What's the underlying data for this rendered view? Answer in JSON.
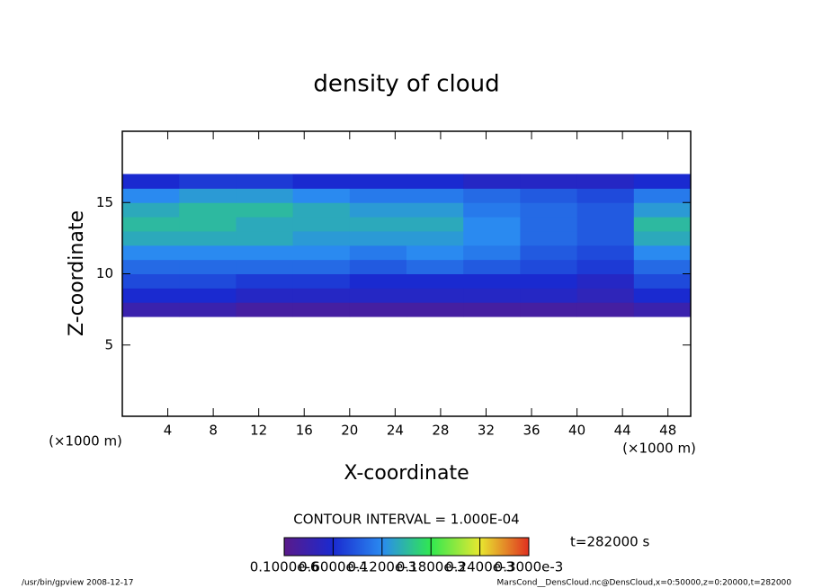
{
  "chart_data": {
    "type": "heatmap",
    "title": "density of cloud",
    "xlabel": "X-coordinate",
    "ylabel": "Z-coordinate",
    "x_unit": "(×1000 m)",
    "xlim": [
      0,
      50
    ],
    "ylim": [
      0,
      20
    ],
    "xticks": [
      4,
      8,
      12,
      16,
      20,
      24,
      28,
      32,
      36,
      40,
      44,
      48
    ],
    "yticks": [
      5,
      10,
      15
    ],
    "x": [
      2.5,
      7.5,
      12.5,
      17.5,
      22.5,
      27.5,
      32.5,
      37.5,
      42.5,
      47.5
    ],
    "y": [
      7.5,
      8.5,
      9.5,
      10.5,
      11.5,
      12.5,
      13.5,
      14.5,
      15.5,
      16.5
    ],
    "z": [
      [
        3e-05,
        3e-05,
        2e-05,
        2e-05,
        2e-05,
        2e-05,
        2e-05,
        2e-05,
        2e-05,
        3e-05
      ],
      [
        6e-05,
        6e-05,
        5e-05,
        5e-05,
        5e-05,
        5e-05,
        5e-05,
        5e-05,
        4e-05,
        6e-05
      ],
      [
        8e-05,
        8e-05,
        7e-05,
        7e-05,
        6e-05,
        6e-05,
        6e-05,
        6e-05,
        5e-05,
        8e-05
      ],
      [
        0.0001,
        0.0001,
        0.0001,
        0.0001,
        9e-05,
        0.0001,
        9e-05,
        8e-05,
        7e-05,
        0.0001
      ],
      [
        0.00012,
        0.00012,
        0.00012,
        0.00012,
        0.00011,
        0.00012,
        0.00011,
        9e-05,
        8e-05,
        0.00012
      ],
      [
        0.00014,
        0.00014,
        0.00014,
        0.00013,
        0.00013,
        0.00013,
        0.00012,
        0.0001,
        9e-05,
        0.00014
      ],
      [
        0.00015,
        0.00015,
        0.00014,
        0.00014,
        0.00014,
        0.00014,
        0.00012,
        0.0001,
        9e-05,
        0.00015
      ],
      [
        0.00014,
        0.00015,
        0.00015,
        0.00014,
        0.00013,
        0.00013,
        0.00011,
        0.0001,
        9e-05,
        0.00013
      ],
      [
        0.00012,
        0.00013,
        0.00013,
        0.00012,
        0.00011,
        0.00011,
        0.0001,
        9e-05,
        8e-05,
        0.00011
      ],
      [
        6e-05,
        7e-05,
        7e-05,
        6e-05,
        6e-05,
        6e-05,
        5e-05,
        5e-05,
        5e-05,
        6e-05
      ]
    ],
    "colorbar": {
      "lim": [
        0,
        0.0003
      ],
      "colors": [
        "#5a1a8a",
        "#1a2ad0",
        "#2a8af0",
        "#30e850",
        "#e8e830",
        "#e03020"
      ],
      "ticks": [
        {
          "value": 1e-07,
          "label": "0.1000e-6"
        },
        {
          "value": 6e-05,
          "label": "0.6000e-4"
        },
        {
          "value": 0.00012,
          "label": "0.1200e-3"
        },
        {
          "value": 0.00018,
          "label": "0.1800e-3"
        },
        {
          "value": 0.00024,
          "label": "0.2400e-3"
        },
        {
          "value": 0.0003,
          "label": "0.3000e-3"
        }
      ]
    },
    "contour_interval": "CONTOUR INTERVAL = 1.000E-04",
    "time_label": "t=282000 s",
    "footer_left": "/usr/bin/gpview   2008-12-17",
    "footer_right": "MarsCond__DensCloud.nc@DensCloud,x=0:50000,z=0:20000,t=282000"
  }
}
